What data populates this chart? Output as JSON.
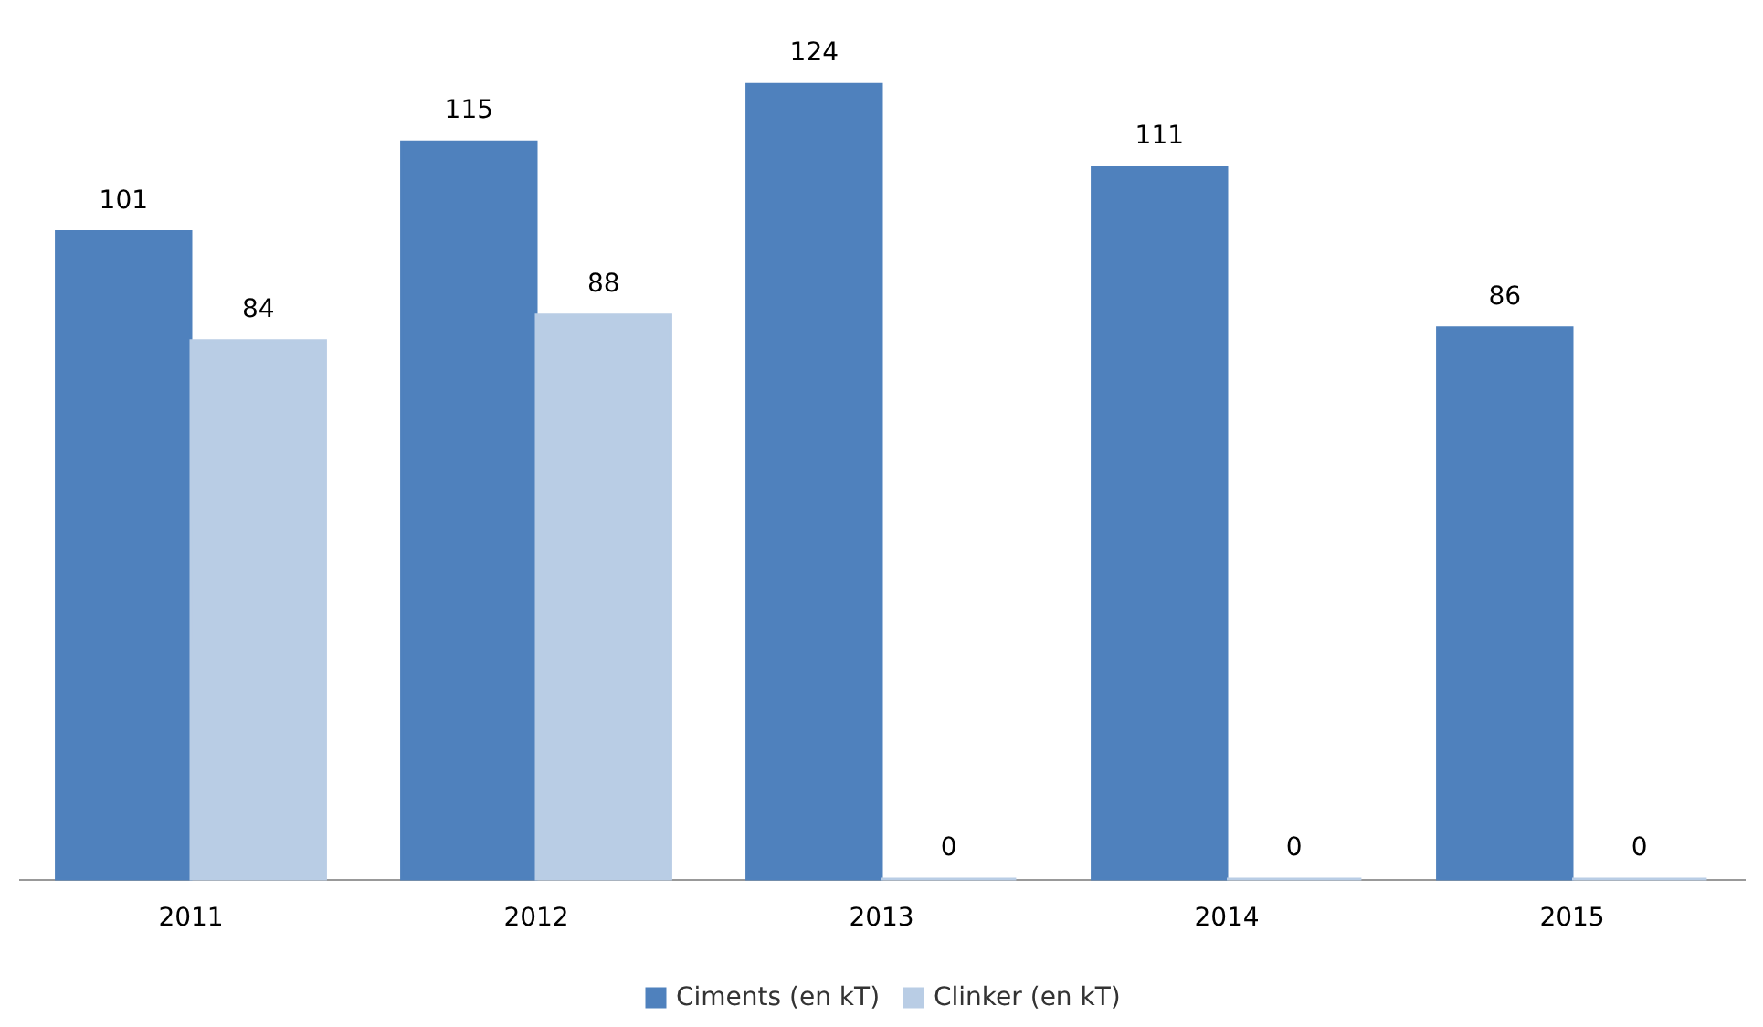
{
  "chart_data": {
    "type": "bar",
    "categories": [
      "2011",
      "2012",
      "2013",
      "2014",
      "2015"
    ],
    "series": [
      {
        "name": "Ciments (en kT)",
        "color": "#4f81bd",
        "values": [
          101,
          115,
          124,
          111,
          86
        ]
      },
      {
        "name": "Clinker (en kT)",
        "color": "#b9cde5",
        "values": [
          84,
          88,
          0,
          0,
          0
        ]
      }
    ],
    "data_labels": true,
    "legend": "bottom",
    "grid": false
  }
}
